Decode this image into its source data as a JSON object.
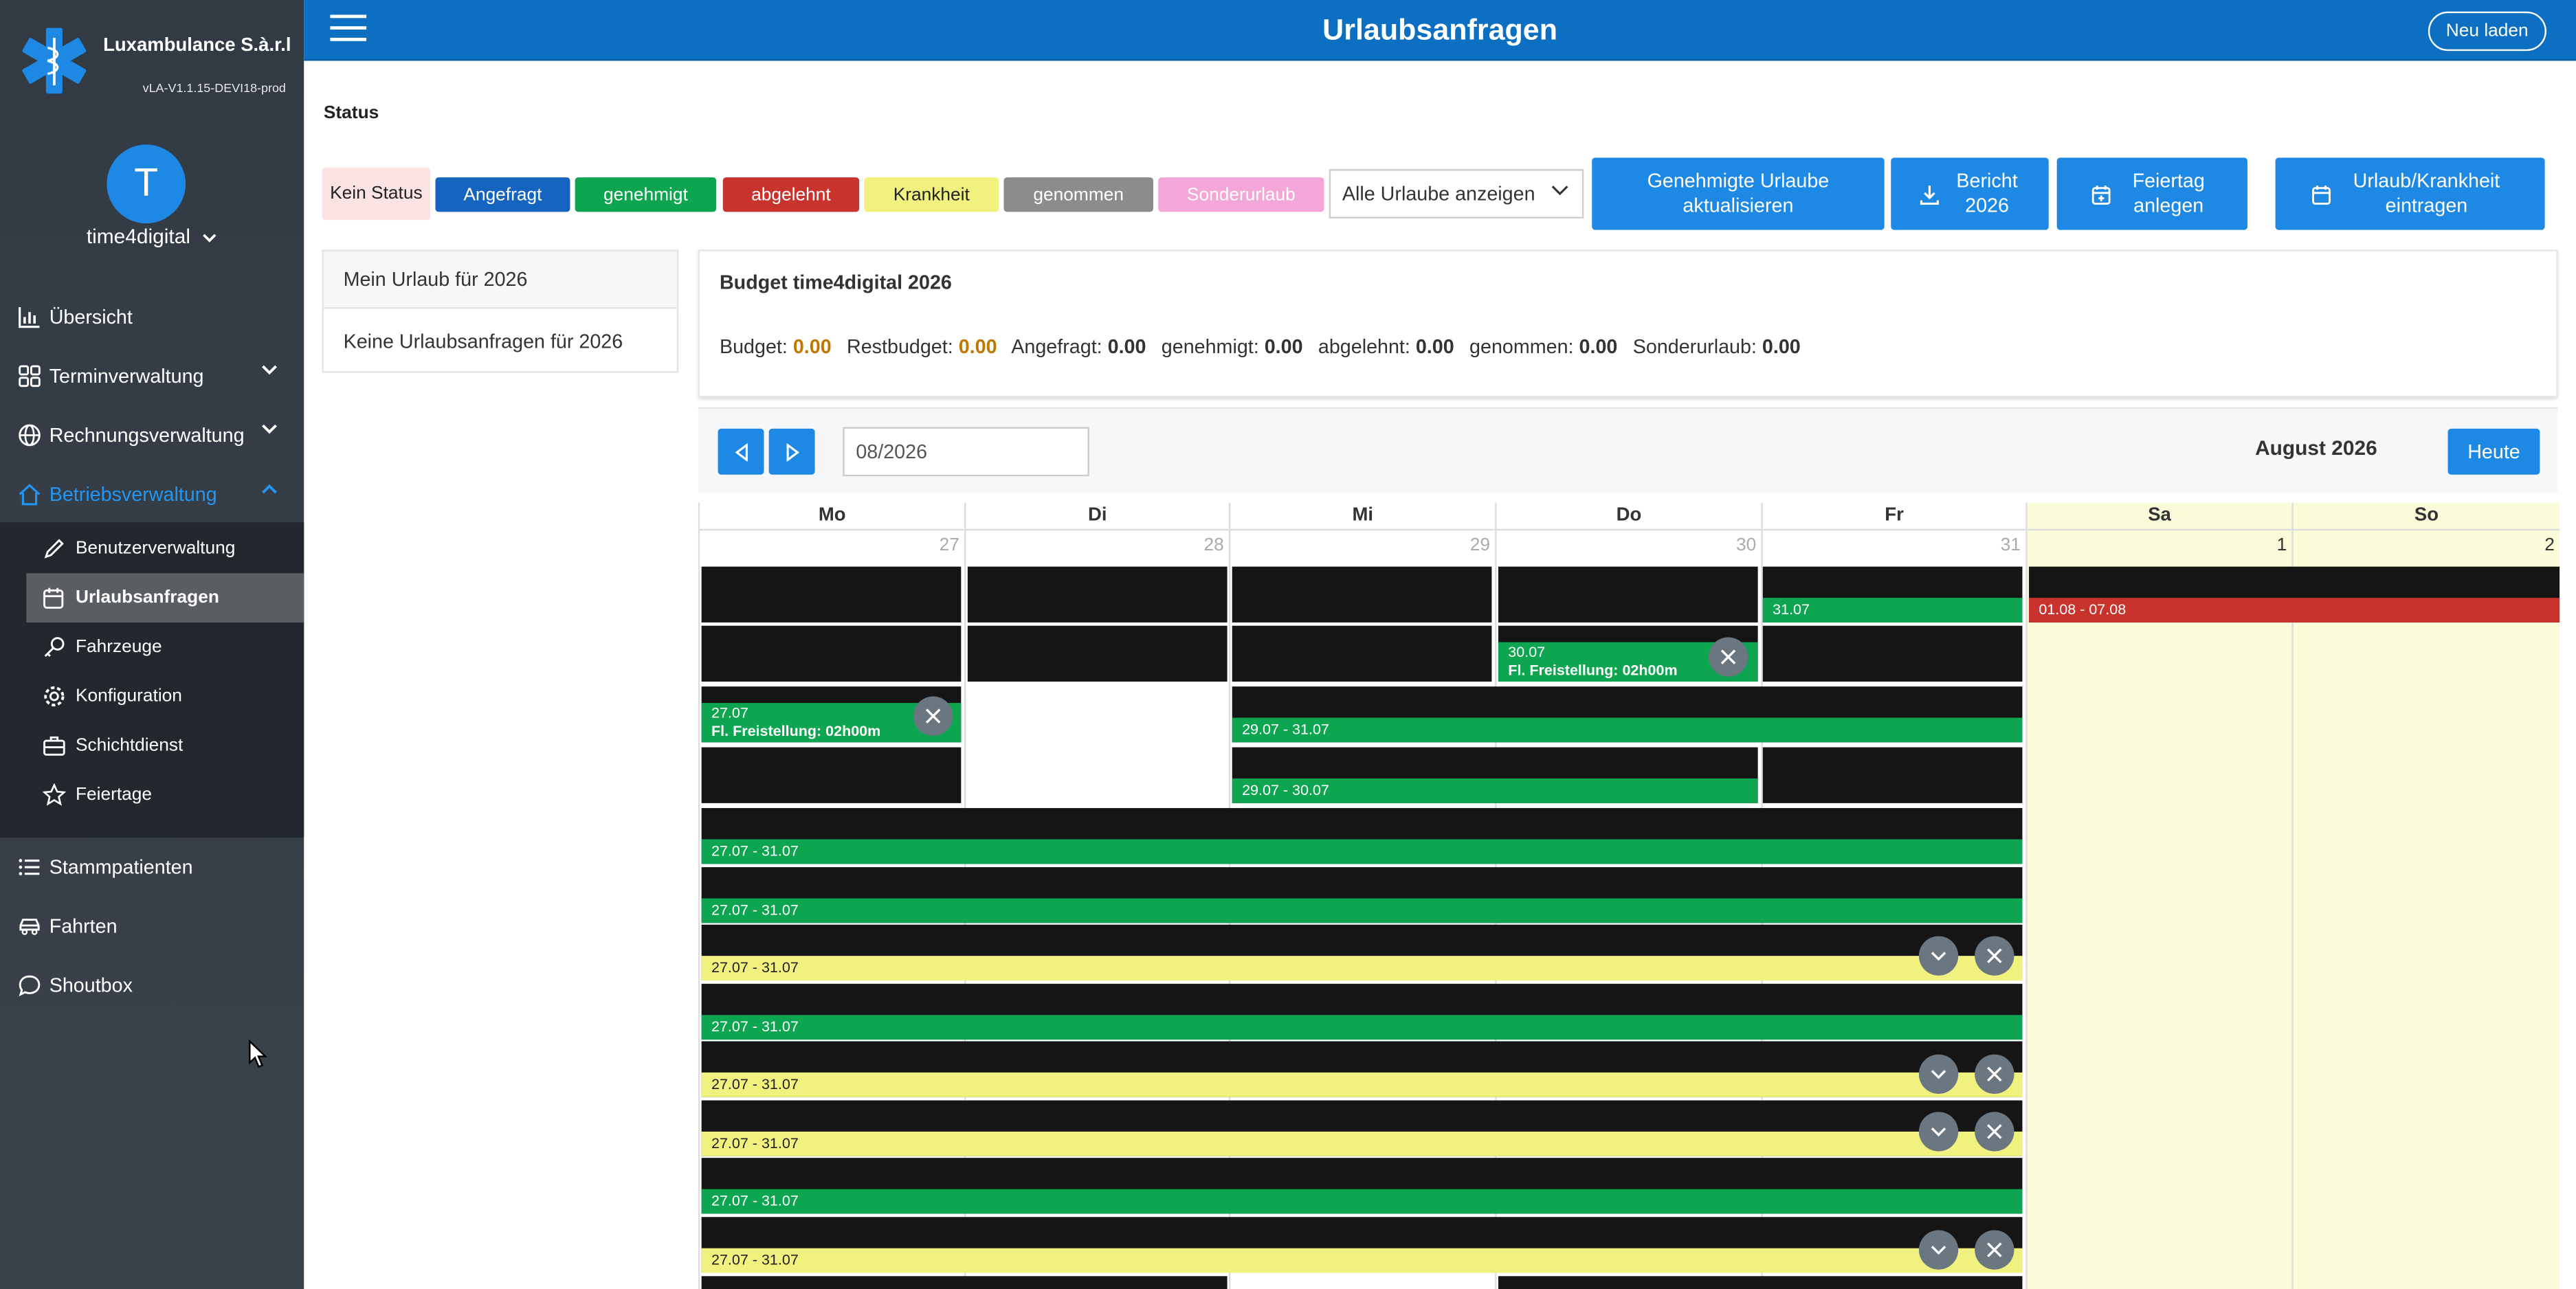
{
  "brand": {
    "company": "Luxambulance S.à.r.l",
    "version": "vLA-V1.1.15-DEVI18-prod"
  },
  "user": {
    "initial": "T",
    "name": "time4digital"
  },
  "nav": {
    "overview": "Übersicht",
    "appointments": "Terminverwaltung",
    "invoices": "Rechnungsverwaltung",
    "operations": "Betriebsverwaltung",
    "sub": [
      "Benutzerverwaltung",
      "Urlaubsanfragen",
      "Fahrzeuge",
      "Konfiguration",
      "Schichtdienst",
      "Feiertage"
    ],
    "patients": "Stammpatienten",
    "trips": "Fahrten",
    "shoutbox": "Shoutbox"
  },
  "header": {
    "title": "Urlaubsanfragen",
    "reload": "Neu laden"
  },
  "status": {
    "label": "Status",
    "chips": [
      {
        "label": "Kein Status",
        "bg": "#fbe3e3",
        "fg": "#222"
      },
      {
        "label": "Angefragt",
        "bg": "#1565c0",
        "fg": "#fff"
      },
      {
        "label": "genehmigt",
        "bg": "#0ea550",
        "fg": "#fff"
      },
      {
        "label": "abgelehnt",
        "bg": "#c8332e",
        "fg": "#fff"
      },
      {
        "label": "Krankheit",
        "bg": "#f1f17f",
        "fg": "#222"
      },
      {
        "label": "genommen",
        "bg": "#8c8c8c",
        "fg": "#fff"
      },
      {
        "label": "Sonderurlaub",
        "bg": "#f3a7d8",
        "fg": "#fff"
      }
    ],
    "filter": "Alle Urlaube anzeigen"
  },
  "actions": {
    "refresh": "Genehmigte Urlaube aktualisieren",
    "report": "Bericht 2026",
    "holiday": "Feiertag anlegen",
    "enter": "Urlaub/Krankheit eintragen"
  },
  "mine": {
    "title": "Mein Urlaub für 2026",
    "empty": "Keine Urlaubsanfragen für 2026"
  },
  "budget": {
    "title": "Budget time4digital 2026",
    "budget_label": "Budget:",
    "budget": "0.00",
    "rest_label": "Restbudget:",
    "rest": "0.00",
    "requested_label": "Angefragt:",
    "requested": "0.00",
    "approved_label": "genehmigt:",
    "approved": "0.00",
    "rejected_label": "abgelehnt:",
    "rejected": "0.00",
    "taken_label": "genommen:",
    "taken": "0.00",
    "special_label": "Sonderurlaub:",
    "special": "0.00"
  },
  "calendar": {
    "month_input": "08/2026",
    "month_label": "August 2026",
    "today": "Heute",
    "days": [
      "Mo",
      "Di",
      "Mi",
      "Do",
      "Fr",
      "Sa",
      "So"
    ],
    "dates": [
      "27",
      "28",
      "29",
      "30",
      "31",
      "1",
      "2"
    ],
    "events": {
      "fr_3107": "31.07",
      "sa_0108": "01.08 - 07.08",
      "do_3007": "30.07",
      "do_3007_detail": "Fl. Freistellung: 02h00m",
      "mo_2707": "27.07",
      "mo_2707_detail": "Fl. Freistellung: 02h00m",
      "mi_fr": "29.07 - 31.07",
      "mi_do": "29.07 - 30.07",
      "week": "27.07 - 31.07"
    }
  }
}
